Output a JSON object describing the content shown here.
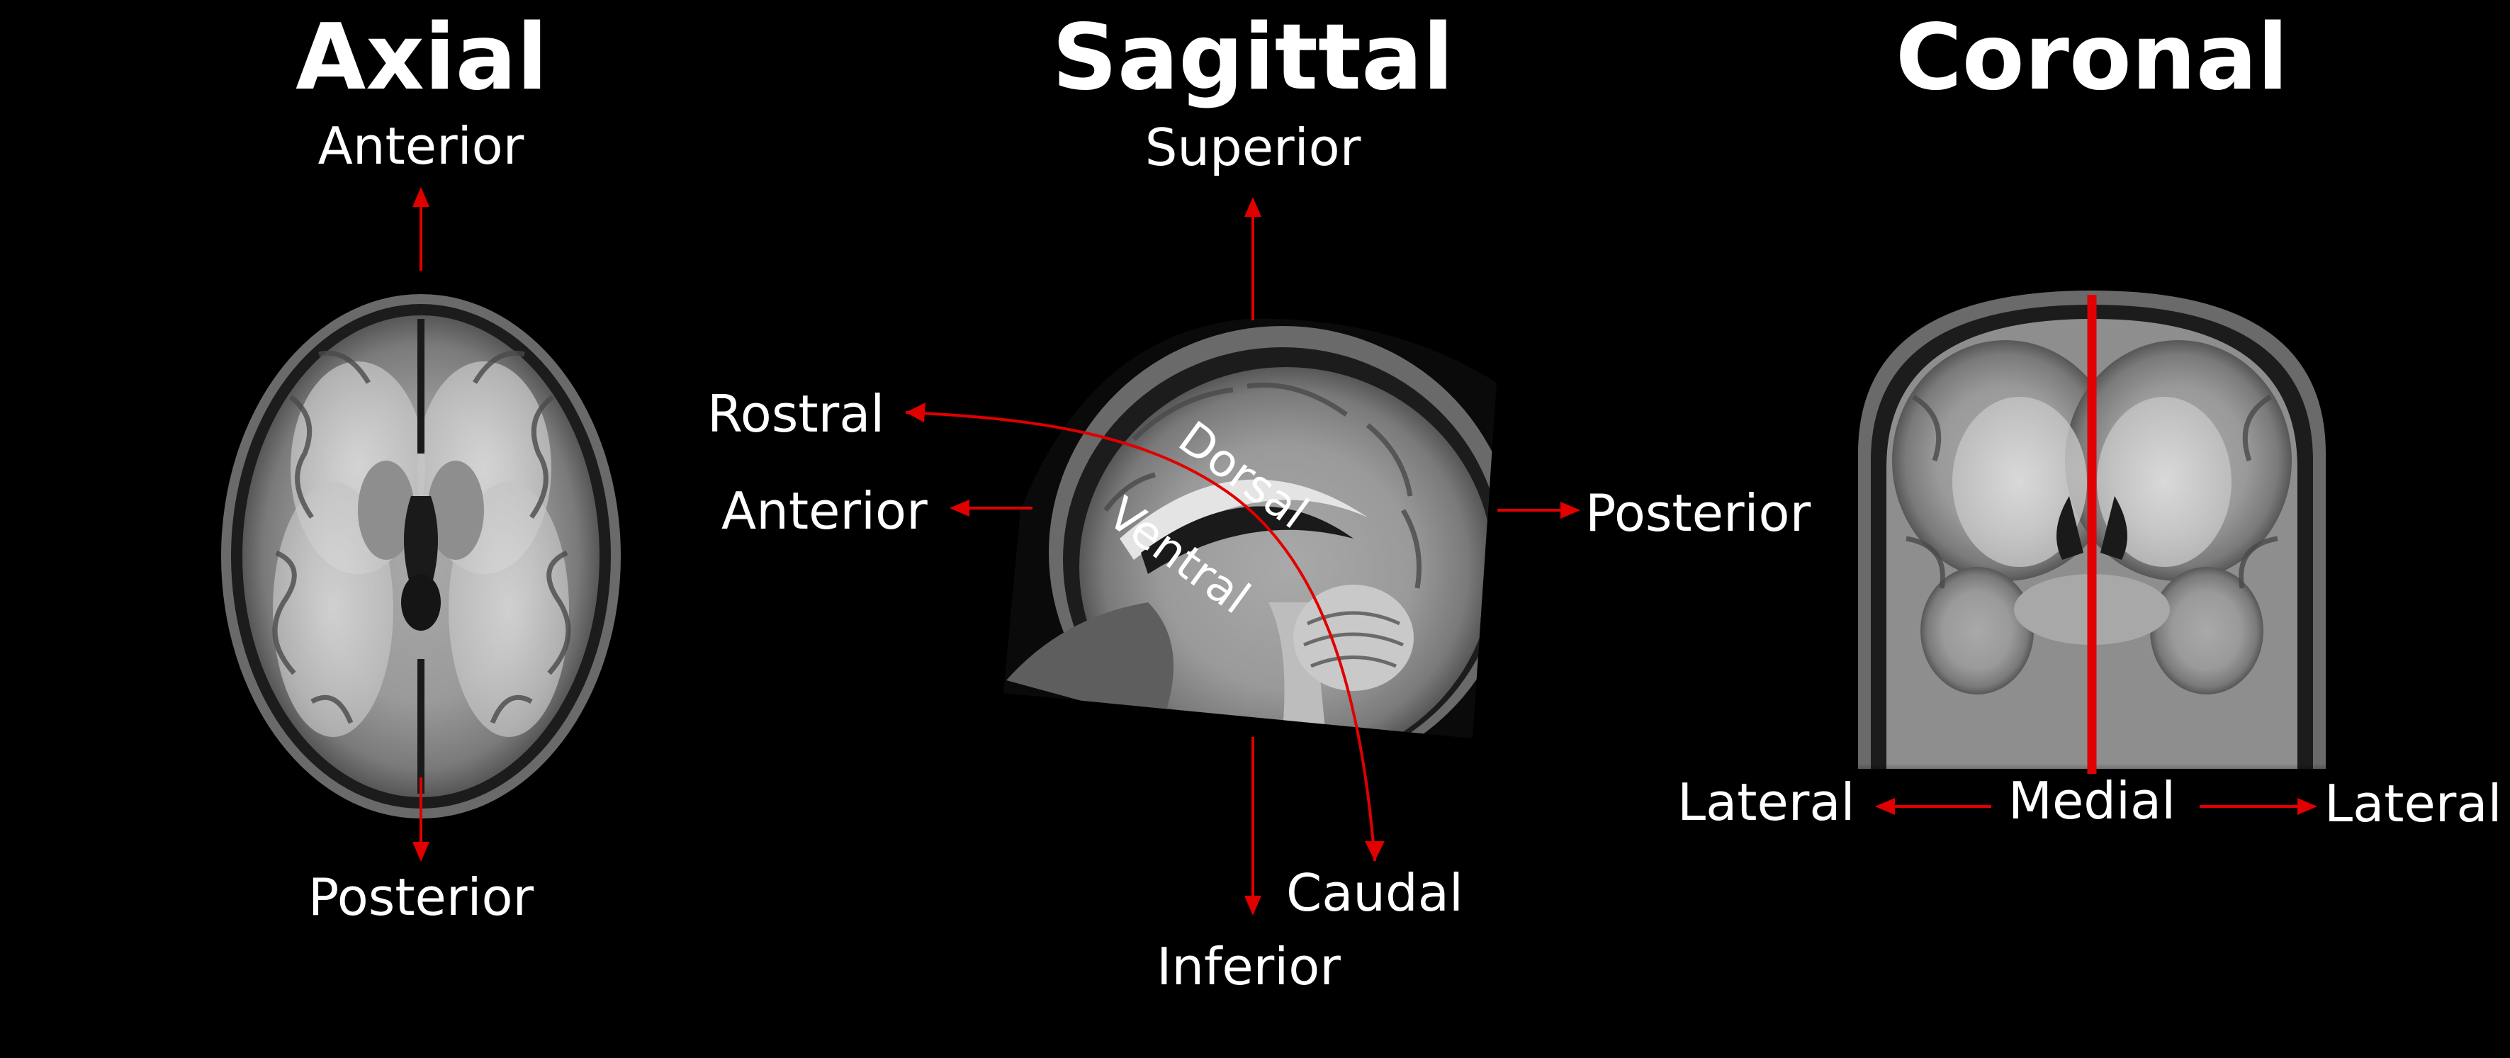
{
  "titles": {
    "axial": "Axial",
    "sagittal": "Sagittal",
    "coronal": "Coronal"
  },
  "axial": {
    "top_label": "Anterior",
    "bottom_label": "Posterior"
  },
  "sagittal": {
    "superior": "Superior",
    "inferior": "Inferior",
    "anterior": "Anterior",
    "posterior": "Posterior",
    "rostral": "Rostral",
    "caudal": "Caudal",
    "dorsal": "Dorsal",
    "ventral": "Ventral"
  },
  "coronal": {
    "lateral_left": "Lateral",
    "medial": "Medial",
    "lateral_right": "Lateral"
  },
  "colors": {
    "background": "#000000",
    "text": "#ffffff",
    "arrow": "#e00000",
    "midline": "#e00000"
  }
}
